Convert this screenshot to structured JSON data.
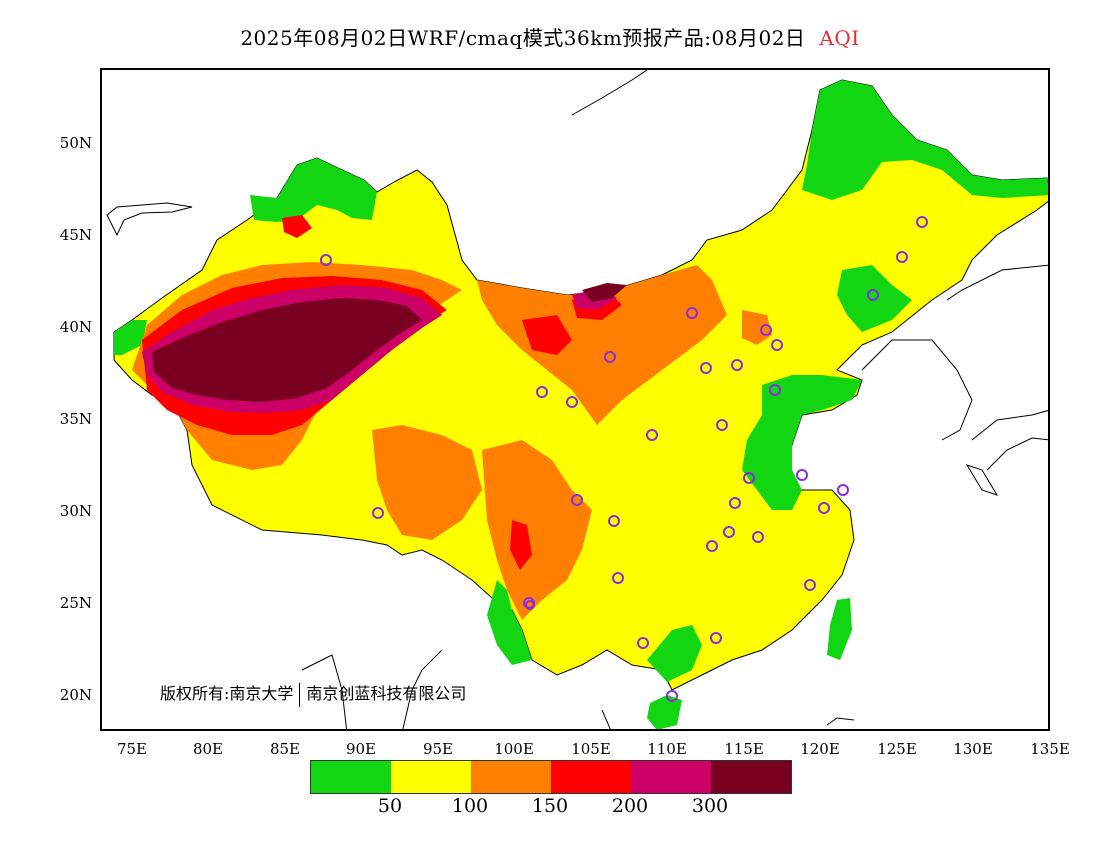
{
  "title": {
    "main": "2025年08月02日WRF/cmaq模式36km预报产品:08月02日",
    "variable": "AQI"
  },
  "axes": {
    "x_ticks": [
      "75E",
      "80E",
      "85E",
      "90E",
      "95E",
      "100E",
      "105E",
      "110E",
      "115E",
      "120E",
      "125E",
      "130E",
      "135E"
    ],
    "y_ticks": [
      "50N",
      "45N",
      "40N",
      "35N",
      "30N",
      "25N",
      "20N"
    ]
  },
  "copyright": {
    "left": "版权所有:南京大学",
    "right": "南京创蓝科技有限公司"
  },
  "legend": {
    "colors": [
      "#11d611",
      "#ffff00",
      "#ff8000",
      "#ff0000",
      "#cc0066",
      "#7a0022"
    ],
    "labels": [
      "50",
      "100",
      "150",
      "200",
      "300"
    ]
  },
  "map_colors": {
    "good": "#11d611",
    "moderate": "#ffff00",
    "sensitive": "#ff8000",
    "unhealthy": "#ff0000",
    "very_unhealthy": "#cc0066",
    "hazardous": "#7a0022",
    "station": "#8a2be2"
  }
}
